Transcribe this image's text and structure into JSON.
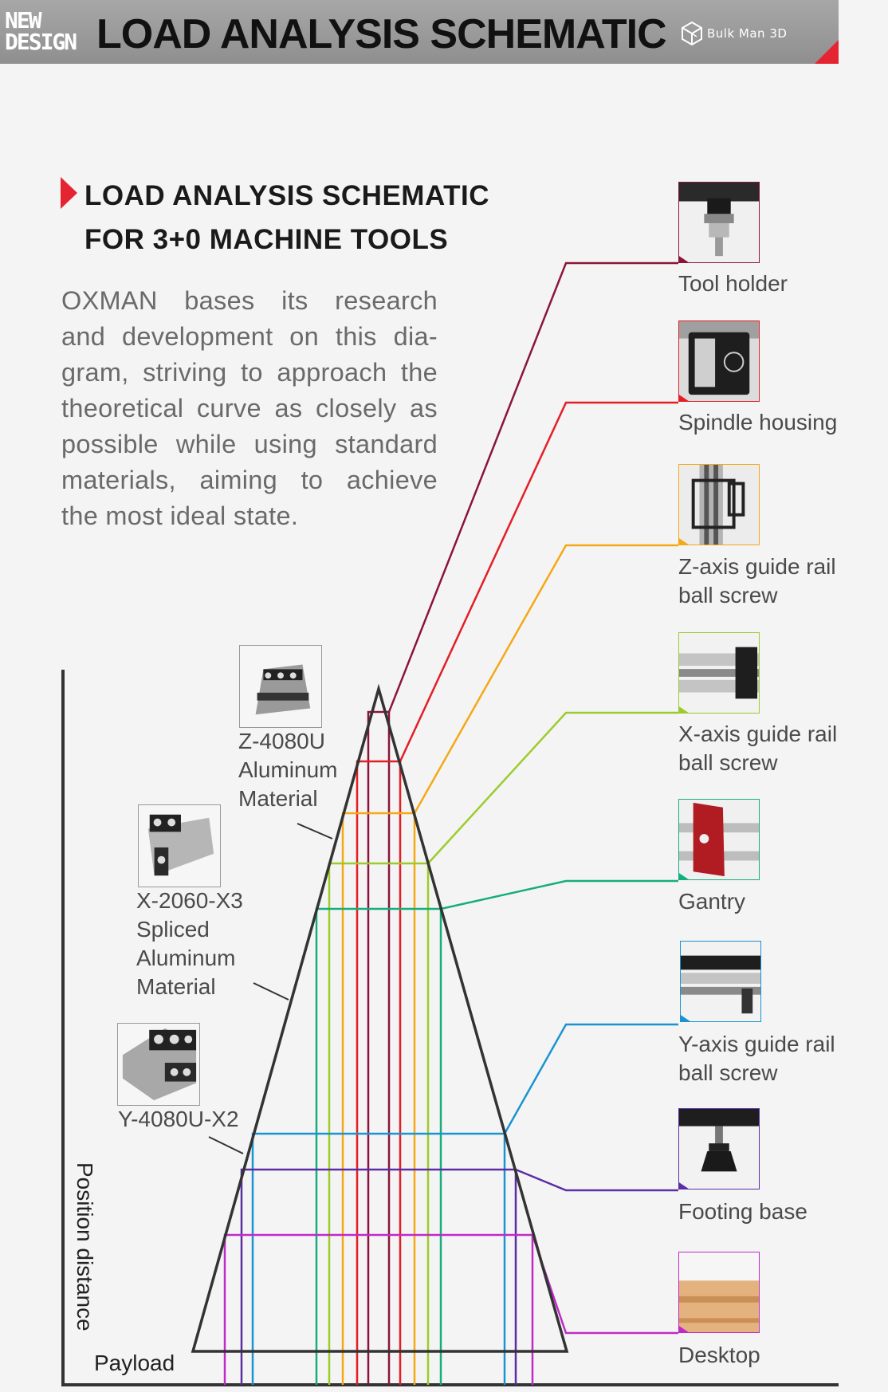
{
  "header": {
    "badge_line1": "NEW",
    "badge_line2": "DESIGN",
    "title": "LOAD ANALYSIS SCHEMATIC",
    "brand": "Bulk Man 3D"
  },
  "subhead": {
    "line1": "LOAD ANALYSIS SCHEMATIC",
    "line2": "FOR 3+0 MACHINE TOOLS"
  },
  "description": {
    "lines": [
      "OXMAN bases its research",
      "and development on this dia-",
      "gram, striving to approach the",
      "theoretical curve as closely as",
      "possible while using standard",
      "materials, aiming to achieve",
      "the most ideal state."
    ]
  },
  "axes": {
    "y_label": "Position distance",
    "x_label": "Payload"
  },
  "components": [
    {
      "name": "Tool holder",
      "lines": [
        "Tool holder"
      ],
      "color": "#8a1538",
      "icon": "tool-holder-icon"
    },
    {
      "name": "Spindle housing",
      "lines": [
        "Spindle housing"
      ],
      "color": "#e41e26",
      "icon": "spindle-housing-icon"
    },
    {
      "name": "Z-axis guide rail ball screw",
      "lines": [
        "Z-axis guide rail",
        "ball screw"
      ],
      "color": "#f5a815",
      "icon": "z-axis-rail-icon"
    },
    {
      "name": "X-axis guide rail ball screw",
      "lines": [
        "X-axis guide rail",
        "ball screw"
      ],
      "color": "#9ccc2c",
      "icon": "x-axis-rail-icon"
    },
    {
      "name": "Gantry",
      "lines": [
        "Gantry"
      ],
      "color": "#16ad7e",
      "icon": "gantry-icon"
    },
    {
      "name": "Y-axis guide rail ball screw",
      "lines": [
        "Y-axis guide rail",
        "ball screw"
      ],
      "color": "#1a94d0",
      "icon": "y-axis-rail-icon"
    },
    {
      "name": "Footing base",
      "lines": [
        "Footing base"
      ],
      "color": "#5b2ea6",
      "icon": "footing-base-icon"
    },
    {
      "name": "Desktop",
      "lines": [
        "Desktop"
      ],
      "color": "#c02ac8",
      "icon": "desktop-icon"
    }
  ],
  "materials": [
    {
      "lines": [
        "Z-4080U",
        "Aluminum",
        "Material"
      ],
      "icon": "z-4080u-profile-icon"
    },
    {
      "lines": [
        "X-2060-X3",
        "Spliced",
        "Aluminum",
        "Material"
      ],
      "icon": "x-2060-profile-icon"
    },
    {
      "lines": [
        "Y-4080U-X2"
      ],
      "icon": "y-4080u-profile-icon"
    }
  ]
}
